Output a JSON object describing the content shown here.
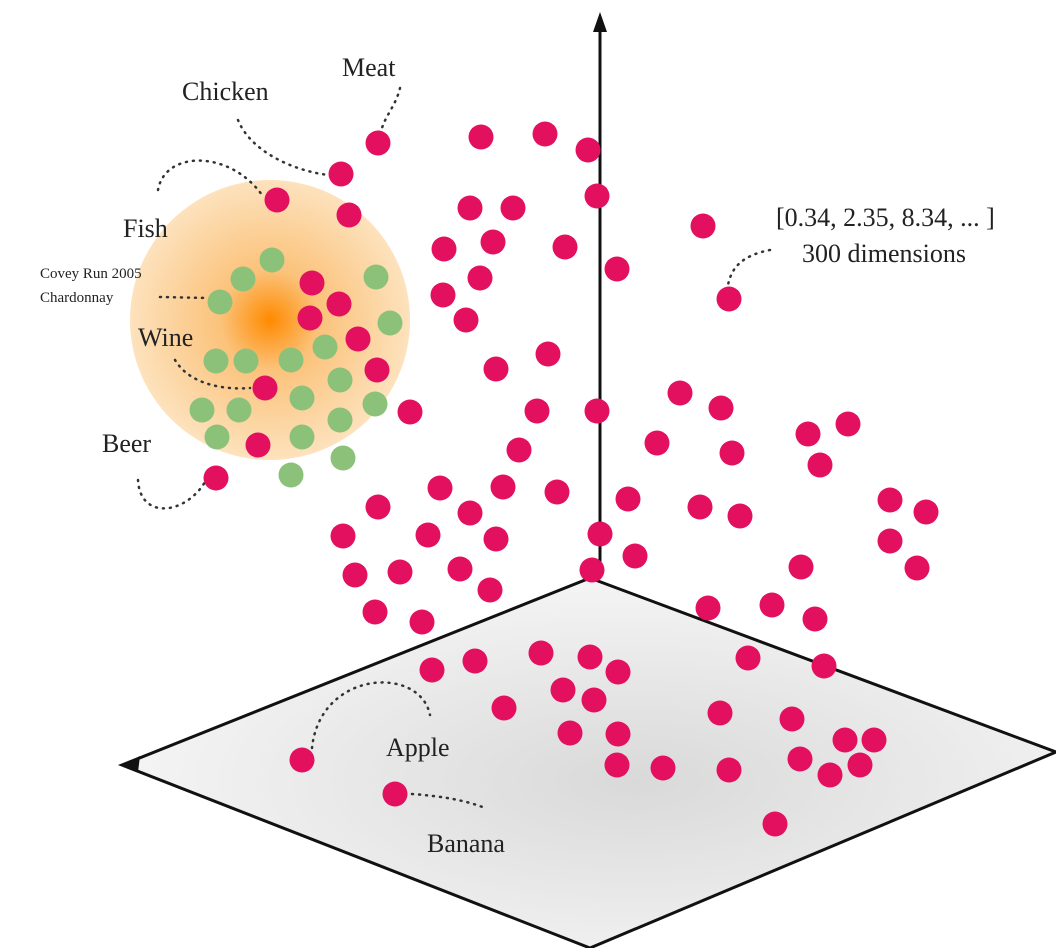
{
  "labels": {
    "meat": "Meat",
    "chicken": "Chicken",
    "fish": "Fish",
    "wine_name": "Covey Run 2005",
    "wine_variety": "Chardonnay",
    "wine": "Wine",
    "beer": "Beer",
    "vector": "[0.34, 2.35, 8.34, ... ]",
    "dimensions": "300 dimensions",
    "apple": "Apple",
    "banana": "Banana"
  }
}
